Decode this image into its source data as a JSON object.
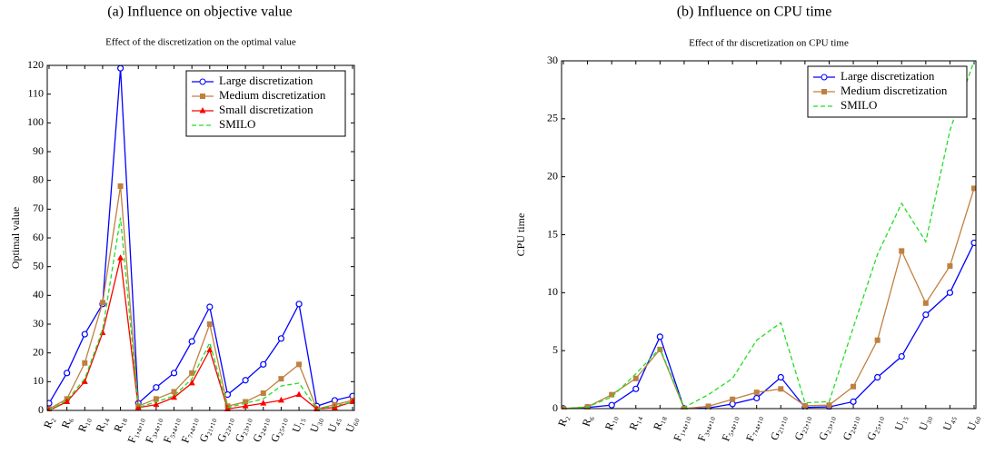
{
  "chart_data": [
    {
      "type": "line",
      "caption": "(a) Influence on objective value",
      "title": "Effect of the discretization on the optimal value",
      "ylabel": "Optimal value",
      "categories": [
        "R₂",
        "R₆",
        "R₁₀",
        "R₁₄",
        "R₁₈",
        "F₁,₄,₁₀",
        "F₃,₄,₁₀",
        "F₅,₄,₁₀",
        "F₇,₄,₁₀",
        "G₂₁,₁₀",
        "G₂₂,₁₀",
        "G₂₃,₁₀",
        "G₂₄,₁₀",
        "G₂₅,₁₀",
        "U₁₅",
        "U₃₀",
        "U₄₅",
        "U₆₀"
      ],
      "ylim": [
        0,
        120
      ],
      "yticks": [
        0,
        10,
        20,
        30,
        40,
        50,
        60,
        70,
        80,
        90,
        100,
        110,
        120
      ],
      "legend": "top-right",
      "series": [
        {
          "name": "Large discretization",
          "color": "#0000ff",
          "marker": "circle",
          "linestyle": "solid",
          "values": [
            2.5,
            13,
            26.5,
            37,
            119,
            2.5,
            8,
            13,
            24,
            36,
            5.5,
            10.5,
            16,
            25,
            37,
            1.5,
            3.5,
            5
          ]
        },
        {
          "name": "Medium discretization",
          "color": "#bf8040",
          "marker": "square",
          "linestyle": "solid",
          "values": [
            0.5,
            4,
            16.5,
            37.5,
            78,
            1.5,
            4,
            6.5,
            13,
            30,
            1.5,
            3,
            6,
            11,
            16,
            0.5,
            2,
            3.5
          ]
        },
        {
          "name": "Small discretization",
          "color": "#ff0000",
          "marker": "triangle",
          "linestyle": "solid",
          "values": [
            0,
            3,
            10,
            27,
            53,
            1,
            2,
            4.5,
            9.5,
            21,
            0.5,
            1.5,
            2.5,
            3.5,
            5.5,
            0.5,
            1,
            3
          ]
        },
        {
          "name": "SMILO",
          "color": "#22dd22",
          "linestyle": "dashed",
          "values": [
            0,
            3.5,
            11,
            28,
            67,
            1,
            3,
            5,
            11,
            23.5,
            1,
            2.5,
            4,
            8.5,
            9.5,
            0.5,
            1.5,
            3
          ]
        }
      ]
    },
    {
      "type": "line",
      "caption": "(b) Influence on CPU time",
      "title": "Effect of thr discretization on CPU time",
      "ylabel": "CPU time",
      "categories": [
        "R₂",
        "R₆",
        "R₁₀",
        "R₁₄",
        "R₁₈",
        "F₁,₄,₁₀",
        "F₃,₄,₁₀",
        "F₅,₄,₁₀",
        "F₇,₄,₁₀",
        "G₂₁,₁₀",
        "G₂₂,₁₀",
        "G₂₃,₁₀",
        "G₂₄,₁₀",
        "G₂₅,₁₀",
        "U₁₅",
        "U₃₀",
        "U₄₅",
        "U₆₀"
      ],
      "ylim": [
        0,
        30
      ],
      "yticks": [
        0,
        5,
        10,
        15,
        20,
        25,
        30
      ],
      "legend": "top-right",
      "series": [
        {
          "name": "Large discretization",
          "color": "#0000ff",
          "marker": "circle",
          "linestyle": "solid",
          "values": [
            0,
            0.1,
            0.3,
            1.7,
            6.2,
            0,
            0.05,
            0.4,
            0.9,
            2.7,
            0.1,
            0.15,
            0.6,
            2.7,
            4.5,
            8.1,
            10,
            14.3
          ]
        },
        {
          "name": "Medium discretization",
          "color": "#bf8040",
          "marker": "square",
          "linestyle": "solid",
          "values": [
            0,
            0.15,
            1.2,
            2.6,
            5.1,
            0,
            0.2,
            0.8,
            1.4,
            1.7,
            0.25,
            0.3,
            1.9,
            5.9,
            13.6,
            9.1,
            12.3,
            19
          ]
        },
        {
          "name": "SMILO",
          "color": "#22dd22",
          "linestyle": "dashed",
          "values": [
            0,
            0.15,
            1,
            3,
            5.2,
            0.1,
            1.2,
            2.6,
            5.9,
            7.4,
            0.5,
            0.6,
            7,
            13.3,
            17.7,
            14.4,
            24,
            30
          ]
        }
      ]
    }
  ]
}
